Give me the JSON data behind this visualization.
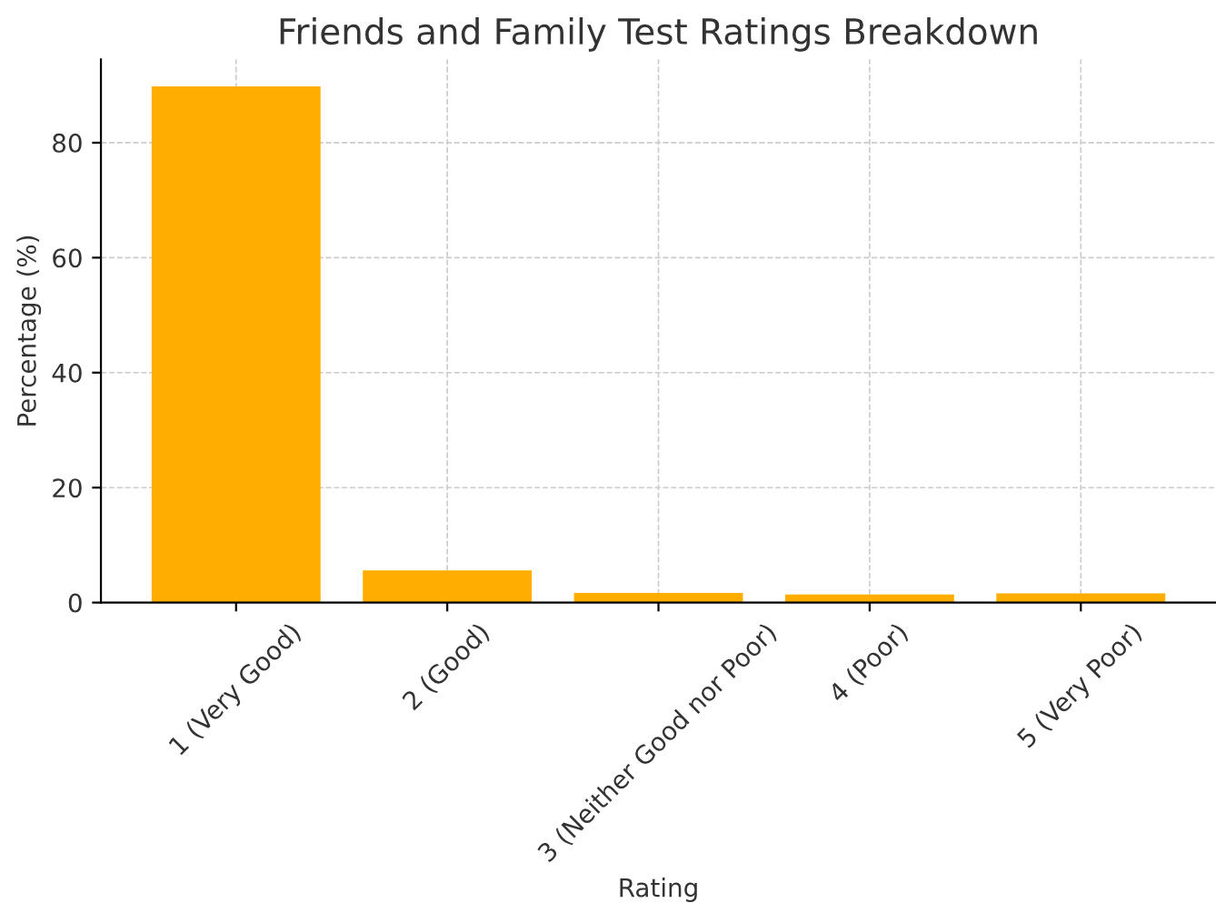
{
  "chart_data": {
    "type": "bar",
    "title": "Friends and Family Test Ratings Breakdown",
    "xlabel": "Rating",
    "ylabel": "Percentage (%)",
    "categories": [
      "1 (Very Good)",
      "2 (Good)",
      "3 (Neither Good nor Poor)",
      "4 (Poor)",
      "5 (Very Poor)"
    ],
    "values": [
      89.8,
      5.6,
      1.7,
      1.4,
      1.6
    ],
    "color": "#ffae00",
    "ylim": [
      0,
      94.5
    ],
    "yticks": [
      0,
      20,
      40,
      60,
      80
    ],
    "grid": true
  }
}
